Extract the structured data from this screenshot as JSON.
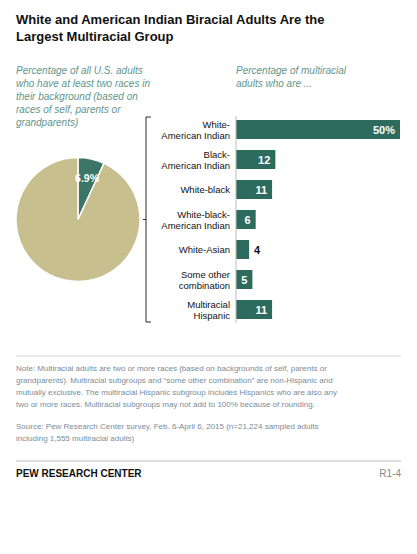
{
  "chart_data": [
    {
      "type": "pie",
      "title": "White and American Indian Biracial Adults Are the\nLargest Multiracial Group",
      "subtitle": "Percentage of all U.S. adults\nwho have at least two races in\ntheir background (based on\nraces of self, parents or\ngrandparents)",
      "values": [
        6.9,
        93.1
      ],
      "value_labels": [
        "6.9%",
        null
      ],
      "colors": [
        "#3a7566",
        "#c8bf8e"
      ],
      "data_labels": true,
      "annotations": [
        "Note: Multiracial adults are two or more races (based on backgrounds of self, parents or\ngrandparents). Multiracial subgroups and “some other combination” are non-Hispanic and\nmutually exclusive. The multiracial Hispanic subgroup includes Hispanics who are also any\ntwo or more races. Multiracial subgroups may not add to 100% because of rounding.",
        "Source: Pew Research Center survey, Feb. 6-April 6, 2015 (n=21,224 sampled adults\nincluding 1,555 multiracial adults)",
        "PEW RESEARCH CENTER",
        "R1-4"
      ]
    },
    {
      "type": "bar",
      "orientation": "horizontal",
      "subtitle": "Percentage of multiracial\nadults who are ...",
      "categories": [
        "White-\nAmerican Indian",
        "Black-\nAmerican Indian",
        "White-black",
        "White-black-\nAmerican Indian",
        "White-Asian",
        "Some other\ncombination",
        "Multiracial\nHispanic"
      ],
      "values": [
        50,
        12,
        11,
        6,
        4,
        5,
        11
      ],
      "value_labels": [
        "50%",
        "12",
        "11",
        "6",
        "4",
        "5",
        "11"
      ],
      "color": "#2d6b5e",
      "xlim": [
        0,
        50
      ],
      "tick_labels": false,
      "data_labels": true
    }
  ]
}
